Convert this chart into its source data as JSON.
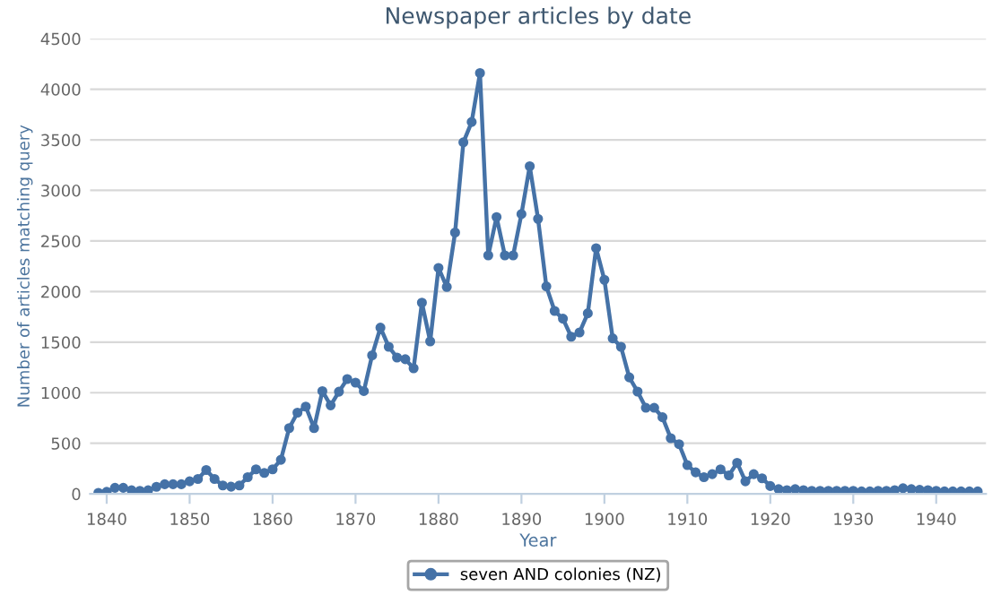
{
  "chart_data": {
    "type": "line",
    "title": "Newspaper articles by date",
    "xlabel": "Year",
    "ylabel": "Number of articles matching query",
    "x": [
      1839,
      1840,
      1841,
      1842,
      1843,
      1844,
      1845,
      1846,
      1847,
      1848,
      1849,
      1850,
      1851,
      1852,
      1853,
      1854,
      1855,
      1856,
      1857,
      1858,
      1859,
      1860,
      1861,
      1862,
      1863,
      1864,
      1865,
      1866,
      1867,
      1868,
      1869,
      1870,
      1871,
      1872,
      1873,
      1874,
      1875,
      1876,
      1877,
      1878,
      1879,
      1880,
      1881,
      1882,
      1883,
      1884,
      1885,
      1886,
      1887,
      1888,
      1889,
      1890,
      1891,
      1892,
      1893,
      1894,
      1895,
      1896,
      1897,
      1898,
      1899,
      1900,
      1901,
      1902,
      1903,
      1904,
      1905,
      1906,
      1907,
      1908,
      1909,
      1910,
      1911,
      1912,
      1913,
      1914,
      1915,
      1916,
      1917,
      1918,
      1919,
      1920,
      1921,
      1922,
      1923,
      1924,
      1925,
      1926,
      1927,
      1928,
      1929,
      1930,
      1931,
      1932,
      1933,
      1934,
      1935,
      1936,
      1937,
      1938,
      1939,
      1940,
      1941,
      1942,
      1943,
      1944,
      1945
    ],
    "series": [
      {
        "name": "seven AND colonies (NZ)",
        "color": "#4572a7",
        "values": [
          10,
          20,
          60,
          60,
          35,
          30,
          35,
          70,
          95,
          95,
          95,
          124,
          147,
          236,
          147,
          83,
          71,
          83,
          165,
          242,
          207,
          242,
          337,
          650,
          803,
          863,
          650,
          1016,
          875,
          1010,
          1135,
          1100,
          1016,
          1370,
          1643,
          1454,
          1348,
          1331,
          1241,
          1890,
          1507,
          2234,
          2045,
          2583,
          3475,
          3676,
          4160,
          2358,
          2736,
          2358,
          2358,
          2766,
          3239,
          2719,
          2051,
          1808,
          1732,
          1554,
          1596,
          1785,
          2429,
          2116,
          1537,
          1454,
          1152,
          1011,
          851,
          851,
          757,
          550,
          491,
          284,
          213,
          165,
          195,
          242,
          183,
          307,
          124,
          195,
          154,
          77,
          47,
          37,
          47,
          37,
          30,
          30,
          30,
          30,
          30,
          30,
          24,
          24,
          30,
          30,
          37,
          55,
          47,
          40,
          37,
          30,
          24,
          24,
          24,
          24,
          24
        ]
      }
    ],
    "xlim": [
      1838,
      1946
    ],
    "xticks": [
      1840,
      1850,
      1860,
      1870,
      1880,
      1890,
      1900,
      1910,
      1920,
      1930,
      1940
    ],
    "ylim": [
      0,
      4500
    ],
    "yticks": [
      0,
      500,
      1000,
      1500,
      2000,
      2500,
      3000,
      3500,
      4000,
      4500
    ],
    "grid": "y",
    "legend": "bottom",
    "marker": "circle",
    "line_style": "solid"
  }
}
